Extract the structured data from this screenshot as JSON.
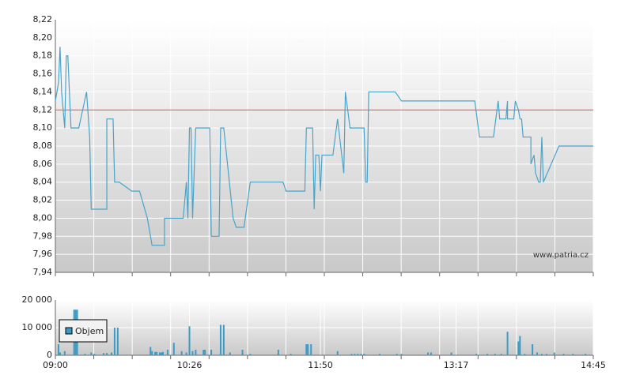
{
  "chart_data": [
    {
      "type": "line",
      "x": [
        540,
        542,
        542,
        543,
        544,
        546,
        547,
        548,
        550,
        555,
        560,
        562,
        562,
        563,
        573,
        573,
        577,
        578,
        581,
        589,
        594,
        599,
        601,
        602,
        610,
        610,
        622,
        624,
        625,
        626,
        627,
        628,
        630,
        639,
        640,
        645,
        646,
        648,
        654,
        656,
        661,
        665,
        686,
        688,
        700,
        701,
        705,
        706,
        707,
        709,
        710,
        711,
        718,
        721,
        725,
        726,
        729,
        738,
        739,
        740,
        741,
        758,
        762,
        809,
        812,
        821,
        824,
        825,
        829,
        830,
        830,
        834,
        835,
        837,
        838,
        839,
        840,
        845,
        845,
        847,
        848,
        850,
        851,
        852,
        853,
        863,
        885
      ],
      "values": [
        8.13,
        8.15,
        8.15,
        8.19,
        8.14,
        8.1,
        8.18,
        8.18,
        8.1,
        8.1,
        8.14,
        8.09,
        8.09,
        8.01,
        8.01,
        8.11,
        8.11,
        8.04,
        8.04,
        8.03,
        8.03,
        8.0,
        7.98,
        7.97,
        7.97,
        8.0,
        8.0,
        8.04,
        8.0,
        8.1,
        8.1,
        8.0,
        8.1,
        8.1,
        7.98,
        7.98,
        8.1,
        8.1,
        8.0,
        7.99,
        7.99,
        8.04,
        8.04,
        8.03,
        8.03,
        8.1,
        8.1,
        8.01,
        8.07,
        8.07,
        8.03,
        8.07,
        8.07,
        8.11,
        8.05,
        8.14,
        8.1,
        8.1,
        8.04,
        8.04,
        8.14,
        8.14,
        8.13,
        8.13,
        8.09,
        8.09,
        8.13,
        8.11,
        8.11,
        8.13,
        8.11,
        8.11,
        8.13,
        8.12,
        8.11,
        8.11,
        8.09,
        8.09,
        8.06,
        8.07,
        8.05,
        8.04,
        8.04,
        8.09,
        8.04,
        8.08,
        8.08
      ],
      "color": "#4aa3c8",
      "xlim": [
        540,
        885
      ],
      "ylim": [
        7.94,
        8.22
      ],
      "yticks": [
        {
          "value": 7.94,
          "label": "7,94"
        },
        {
          "value": 7.96,
          "label": "7,96"
        },
        {
          "value": 7.98,
          "label": "7,98"
        },
        {
          "value": 8.0,
          "label": "8,00"
        },
        {
          "value": 8.02,
          "label": "8,02"
        },
        {
          "value": 8.04,
          "label": "8,04"
        },
        {
          "value": 8.06,
          "label": "8,06"
        },
        {
          "value": 8.08,
          "label": "8,08"
        },
        {
          "value": 8.1,
          "label": "8,10"
        },
        {
          "value": 8.12,
          "label": "8,12"
        },
        {
          "value": 8.14,
          "label": "8,14"
        },
        {
          "value": 8.16,
          "label": "8,16"
        },
        {
          "value": 8.18,
          "label": "8,18"
        },
        {
          "value": 8.2,
          "label": "8,20"
        },
        {
          "value": 8.22,
          "label": "8,22"
        }
      ],
      "grid": true,
      "reference_line": {
        "value": 8.12,
        "color": "#e8474c"
      },
      "watermark": "www.patria.cz"
    },
    {
      "type": "bar",
      "x": [
        542,
        543,
        546,
        552,
        553,
        554,
        559,
        563,
        565,
        571,
        573,
        576,
        578,
        580,
        601,
        602,
        604,
        605,
        607,
        608,
        609,
        612,
        616,
        621,
        624,
        626,
        628,
        630,
        635,
        636,
        640,
        646,
        648,
        652,
        660,
        665,
        683,
        691,
        701,
        702,
        704,
        721,
        730,
        732,
        734,
        736,
        738,
        748,
        759,
        762,
        779,
        781,
        794,
        810,
        817,
        822,
        826,
        830,
        837,
        838,
        841,
        846,
        849,
        852,
        855,
        860,
        866,
        872,
        880
      ],
      "series": [
        {
          "name": "Objem",
          "color": "#3a9cc6",
          "values": [
            4000,
            1000,
            1500,
            16500,
            16500,
            16500,
            500,
            1000,
            500,
            800,
            800,
            1000,
            10000,
            10000,
            3000,
            1500,
            1200,
            1200,
            1000,
            1000,
            1200,
            2000,
            4500,
            1500,
            1000,
            10500,
            1500,
            2000,
            2000,
            2000,
            2000,
            11000,
            11000,
            1000,
            2000,
            500,
            2000,
            500,
            4000,
            4000,
            4000,
            1500,
            500,
            500,
            500,
            500,
            500,
            500,
            500,
            500,
            1000,
            1000,
            1000,
            500,
            500,
            500,
            500,
            8500,
            5000,
            7000,
            500,
            4000,
            1000,
            500,
            500,
            1000,
            500,
            500,
            500
          ]
        }
      ],
      "xlim": [
        540,
        885
      ],
      "xticks": [
        {
          "value": 540,
          "label": "09:00"
        },
        {
          "value": 626,
          "label": "10:26"
        },
        {
          "value": 710,
          "label": "11:50"
        },
        {
          "value": 797,
          "label": "13:17"
        },
        {
          "value": 885,
          "label": "14:45"
        }
      ],
      "ylim": [
        0,
        20000
      ],
      "yticks": [
        0,
        {
          "value": 10000,
          "label": "10 000"
        },
        {
          "value": 20000,
          "label": "20 000"
        }
      ],
      "grid": true,
      "legend": "upper-left"
    }
  ]
}
